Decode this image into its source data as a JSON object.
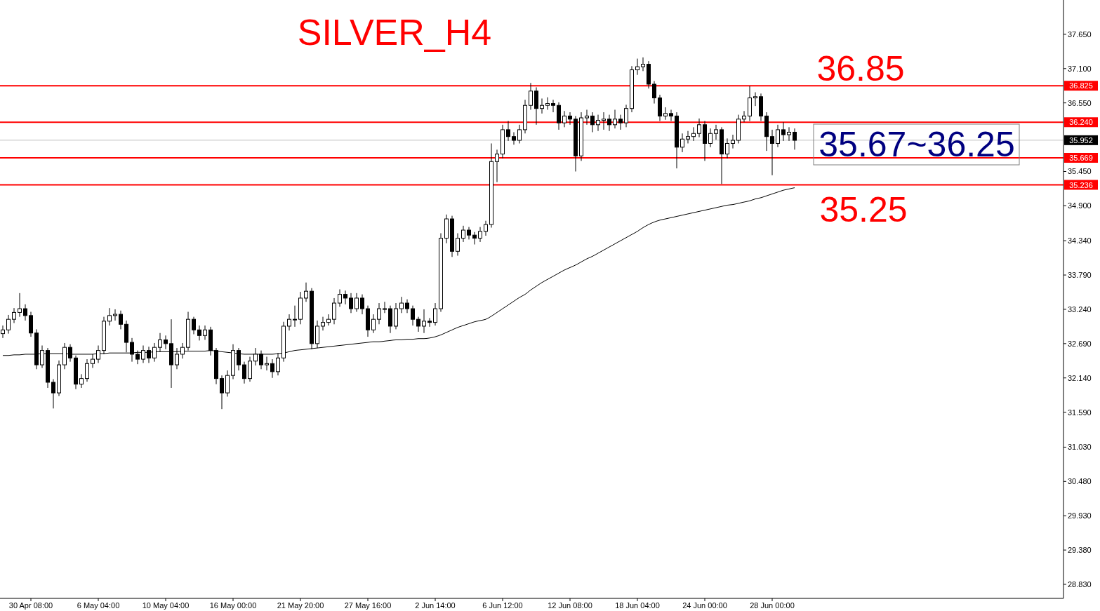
{
  "chart_data": {
    "type": "candlestick",
    "title": "SILVER_H4",
    "categories": [
      null,
      null,
      null,
      null,
      null,
      "30 Apr 08:00",
      null,
      null,
      null,
      null,
      null,
      null,
      null,
      null,
      null,
      null,
      null,
      "6 May 04:00",
      null,
      null,
      null,
      null,
      null,
      null,
      null,
      null,
      null,
      null,
      null,
      "10 May 04:00",
      null,
      null,
      null,
      null,
      null,
      null,
      null,
      null,
      null,
      null,
      null,
      "16 May 00:00",
      null,
      null,
      null,
      null,
      null,
      null,
      null,
      null,
      null,
      null,
      null,
      "21 May 20:00",
      null,
      null,
      null,
      null,
      null,
      null,
      null,
      null,
      null,
      null,
      null,
      "27 May 16:00",
      null,
      null,
      null,
      null,
      null,
      null,
      null,
      null,
      null,
      null,
      null,
      "2 Jun 14:00",
      null,
      null,
      null,
      null,
      null,
      null,
      null,
      null,
      null,
      null,
      null,
      "6 Jun 12:00",
      null,
      null,
      null,
      null,
      null,
      null,
      null,
      null,
      null,
      null,
      null,
      "12 Jun 08:00",
      null,
      null,
      null,
      null,
      null,
      null,
      null,
      null,
      null,
      null,
      null,
      "18 Jun 04:00",
      null,
      null,
      null,
      null,
      null,
      null,
      null,
      null,
      null,
      null,
      null,
      "24 Jun 00:00",
      null,
      null,
      null,
      null,
      null,
      null,
      null,
      null,
      null,
      null,
      null,
      "28 Jun 00:00",
      null,
      null,
      null,
      null
    ],
    "ohlc": [
      [
        32.85,
        32.98,
        32.78,
        32.91
      ],
      [
        32.91,
        33.15,
        32.85,
        33.08
      ],
      [
        33.08,
        33.26,
        33.02,
        33.19
      ],
      [
        33.19,
        33.5,
        33.12,
        33.25
      ],
      [
        33.25,
        33.32,
        33.06,
        33.14
      ],
      [
        33.14,
        33.2,
        32.8,
        32.86
      ],
      [
        32.86,
        32.92,
        32.28,
        32.35
      ],
      [
        32.35,
        32.66,
        32.3,
        32.58
      ],
      [
        32.58,
        32.62,
        31.98,
        32.07
      ],
      [
        32.07,
        32.12,
        31.65,
        31.9
      ],
      [
        31.9,
        32.42,
        31.85,
        32.35
      ],
      [
        32.35,
        32.7,
        32.28,
        32.63
      ],
      [
        32.63,
        32.68,
        32.4,
        32.46
      ],
      [
        32.46,
        32.5,
        31.96,
        32.04
      ],
      [
        32.04,
        32.2,
        31.98,
        32.13
      ],
      [
        32.13,
        32.44,
        32.08,
        32.37
      ],
      [
        32.37,
        32.52,
        32.3,
        32.44
      ],
      [
        32.44,
        32.66,
        32.38,
        32.58
      ],
      [
        32.58,
        33.12,
        32.52,
        33.05
      ],
      [
        33.05,
        33.26,
        32.98,
        33.14
      ],
      [
        33.14,
        33.24,
        33.06,
        33.16
      ],
      [
        33.16,
        33.22,
        32.92,
        33.0
      ],
      [
        33.0,
        33.06,
        32.55,
        32.71
      ],
      [
        32.71,
        32.78,
        32.4,
        32.52
      ],
      [
        32.52,
        32.58,
        32.36,
        32.44
      ],
      [
        32.44,
        32.66,
        32.38,
        32.58
      ],
      [
        32.58,
        32.64,
        32.38,
        32.46
      ],
      [
        32.46,
        32.7,
        32.4,
        32.63
      ],
      [
        32.63,
        32.86,
        32.56,
        32.75
      ],
      [
        32.75,
        32.82,
        32.6,
        32.69
      ],
      [
        32.69,
        33.08,
        31.98,
        32.35
      ],
      [
        32.35,
        32.62,
        32.28,
        32.52
      ],
      [
        32.52,
        32.7,
        32.45,
        32.63
      ],
      [
        32.63,
        33.2,
        32.58,
        33.08
      ],
      [
        33.08,
        33.12,
        32.84,
        32.91
      ],
      [
        32.91,
        32.98,
        32.74,
        32.82
      ],
      [
        32.82,
        32.98,
        32.75,
        32.91
      ],
      [
        32.91,
        32.96,
        32.5,
        32.58
      ],
      [
        32.58,
        32.62,
        32.04,
        32.13
      ],
      [
        32.13,
        32.18,
        31.64,
        31.9
      ],
      [
        31.9,
        32.26,
        31.84,
        32.18
      ],
      [
        32.18,
        32.68,
        32.12,
        32.58
      ],
      [
        32.58,
        32.62,
        32.26,
        32.35
      ],
      [
        32.35,
        32.4,
        32.05,
        32.13
      ],
      [
        32.13,
        32.48,
        32.08,
        32.41
      ],
      [
        32.41,
        32.62,
        32.34,
        32.52
      ],
      [
        32.52,
        32.58,
        32.28,
        32.35
      ],
      [
        32.35,
        32.48,
        32.26,
        32.37
      ],
      [
        32.37,
        32.44,
        32.14,
        32.24
      ],
      [
        32.24,
        32.54,
        32.18,
        32.46
      ],
      [
        32.46,
        33.04,
        32.4,
        32.97
      ],
      [
        32.97,
        33.16,
        32.9,
        33.08
      ],
      [
        33.08,
        33.3,
        32.96,
        33.08
      ],
      [
        33.08,
        33.52,
        33.0,
        33.42
      ],
      [
        33.42,
        33.67,
        33.36,
        33.53
      ],
      [
        33.53,
        33.58,
        32.6,
        32.69
      ],
      [
        32.69,
        33.06,
        32.62,
        32.97
      ],
      [
        32.97,
        33.12,
        32.9,
        33.03
      ],
      [
        33.03,
        33.16,
        32.98,
        33.08
      ],
      [
        33.08,
        33.42,
        33.0,
        33.34
      ],
      [
        33.34,
        33.56,
        33.28,
        33.48
      ],
      [
        33.48,
        33.54,
        33.32,
        33.42
      ],
      [
        33.42,
        33.5,
        33.18,
        33.25
      ],
      [
        33.25,
        33.5,
        33.2,
        33.42
      ],
      [
        33.42,
        33.48,
        33.16,
        33.25
      ],
      [
        33.25,
        33.3,
        32.8,
        32.91
      ],
      [
        32.91,
        33.16,
        32.86,
        33.08
      ],
      [
        33.08,
        33.34,
        33.0,
        33.25
      ],
      [
        33.25,
        33.36,
        33.18,
        33.25
      ],
      [
        33.25,
        33.3,
        32.86,
        32.97
      ],
      [
        32.97,
        33.34,
        32.92,
        33.25
      ],
      [
        33.25,
        33.44,
        33.18,
        33.34
      ],
      [
        33.34,
        33.4,
        33.18,
        33.25
      ],
      [
        33.25,
        33.3,
        32.98,
        33.08
      ],
      [
        33.08,
        33.12,
        32.88,
        32.97
      ],
      [
        32.97,
        33.24,
        32.86,
        33.05
      ],
      [
        33.05,
        33.1,
        32.96,
        33.03
      ],
      [
        33.03,
        33.34,
        32.98,
        33.25
      ],
      [
        33.25,
        34.46,
        33.2,
        34.38
      ],
      [
        34.38,
        34.76,
        34.3,
        34.69
      ],
      [
        34.69,
        34.74,
        34.08,
        34.17
      ],
      [
        34.17,
        34.46,
        34.1,
        34.38
      ],
      [
        34.38,
        34.58,
        34.32,
        34.51
      ],
      [
        34.51,
        34.56,
        34.36,
        34.43
      ],
      [
        34.43,
        34.48,
        34.28,
        34.38
      ],
      [
        34.38,
        34.56,
        34.32,
        34.49
      ],
      [
        34.49,
        34.66,
        34.42,
        34.6
      ],
      [
        34.6,
        35.9,
        34.55,
        35.61
      ],
      [
        35.61,
        35.8,
        35.28,
        35.73
      ],
      [
        35.73,
        36.2,
        35.66,
        36.12
      ],
      [
        36.12,
        36.26,
        35.94,
        36.01
      ],
      [
        36.01,
        36.08,
        35.88,
        35.95
      ],
      [
        35.95,
        36.2,
        35.9,
        36.12
      ],
      [
        36.12,
        36.6,
        36.06,
        36.51
      ],
      [
        36.51,
        36.87,
        36.44,
        36.74
      ],
      [
        36.74,
        36.8,
        36.2,
        36.46
      ],
      [
        36.46,
        36.62,
        36.38,
        36.51
      ],
      [
        36.51,
        36.64,
        36.44,
        36.54
      ],
      [
        36.54,
        36.6,
        36.4,
        36.51
      ],
      [
        36.51,
        36.56,
        36.12,
        36.23
      ],
      [
        36.23,
        36.42,
        36.16,
        36.34
      ],
      [
        36.34,
        36.4,
        36.2,
        36.29
      ],
      [
        36.29,
        36.34,
        35.45,
        35.7
      ],
      [
        35.7,
        36.4,
        35.62,
        36.31
      ],
      [
        36.31,
        36.44,
        36.2,
        36.34
      ],
      [
        36.34,
        36.4,
        36.08,
        36.2
      ],
      [
        36.2,
        36.36,
        36.1,
        36.27
      ],
      [
        36.27,
        36.4,
        36.12,
        36.29
      ],
      [
        36.29,
        36.36,
        36.1,
        36.2
      ],
      [
        36.2,
        36.44,
        36.14,
        36.29
      ],
      [
        36.29,
        36.36,
        36.12,
        36.23
      ],
      [
        36.23,
        36.52,
        36.16,
        36.46
      ],
      [
        36.46,
        37.14,
        36.4,
        37.08
      ],
      [
        37.08,
        37.26,
        37.0,
        37.13
      ],
      [
        37.13,
        37.28,
        37.06,
        37.17
      ],
      [
        37.17,
        37.22,
        36.78,
        36.85
      ],
      [
        36.85,
        36.9,
        36.54,
        36.63
      ],
      [
        36.63,
        36.68,
        36.26,
        36.34
      ],
      [
        36.34,
        36.48,
        36.28,
        36.38
      ],
      [
        36.38,
        36.44,
        36.26,
        36.34
      ],
      [
        36.34,
        36.4,
        35.5,
        35.84
      ],
      [
        35.84,
        36.06,
        35.76,
        35.97
      ],
      [
        35.97,
        36.1,
        35.9,
        36.01
      ],
      [
        36.01,
        36.16,
        35.94,
        36.06
      ],
      [
        36.06,
        36.3,
        36.0,
        36.2
      ],
      [
        36.2,
        36.26,
        35.62,
        35.9
      ],
      [
        35.9,
        36.14,
        35.84,
        36.06
      ],
      [
        36.06,
        36.2,
        35.96,
        36.12
      ],
      [
        36.12,
        36.16,
        35.25,
        35.73
      ],
      [
        35.73,
        35.98,
        35.66,
        35.9
      ],
      [
        35.9,
        36.04,
        35.82,
        35.95
      ],
      [
        35.95,
        36.36,
        35.9,
        36.29
      ],
      [
        36.29,
        36.42,
        36.24,
        36.34
      ],
      [
        36.34,
        36.82,
        36.26,
        36.63
      ],
      [
        36.63,
        36.72,
        36.5,
        36.65
      ],
      [
        36.65,
        36.7,
        36.26,
        36.34
      ],
      [
        36.34,
        36.4,
        35.78,
        36.01
      ],
      [
        36.01,
        36.12,
        35.39,
        35.9
      ],
      [
        35.9,
        36.2,
        35.84,
        36.12
      ],
      [
        36.12,
        36.24,
        35.94,
        36.04
      ],
      [
        36.04,
        36.16,
        35.94,
        36.08
      ],
      [
        36.08,
        36.14,
        35.8,
        35.95
      ]
    ],
    "series": [
      {
        "type": "line",
        "color": "#000000",
        "values": [
          32.5,
          32.5,
          32.51,
          32.51,
          32.52,
          32.52,
          32.52,
          32.53,
          32.53,
          32.53,
          32.53,
          32.53,
          32.52,
          32.52,
          32.52,
          32.52,
          32.52,
          32.53,
          32.53,
          32.54,
          32.54,
          32.54,
          32.54,
          32.54,
          32.55,
          32.55,
          32.55,
          32.56,
          32.56,
          32.56,
          32.56,
          32.56,
          32.57,
          32.57,
          32.57,
          32.57,
          32.57,
          32.58,
          32.57,
          32.56,
          32.55,
          32.54,
          32.53,
          32.52,
          32.52,
          32.52,
          32.52,
          32.52,
          32.52,
          32.53,
          32.54,
          32.56,
          32.58,
          32.59,
          32.6,
          32.61,
          32.62,
          32.63,
          32.64,
          32.65,
          32.66,
          32.67,
          32.68,
          32.69,
          32.7,
          32.71,
          32.72,
          32.72,
          32.73,
          32.74,
          32.75,
          32.75,
          32.76,
          32.76,
          32.77,
          32.77,
          32.78,
          32.8,
          32.83,
          32.87,
          32.91,
          32.95,
          32.98,
          33.01,
          33.04,
          33.06,
          33.08,
          33.13,
          33.19,
          33.25,
          33.31,
          33.37,
          33.43,
          33.48,
          33.55,
          33.61,
          33.67,
          33.72,
          33.77,
          33.82,
          33.87,
          33.91,
          33.95,
          34.0,
          34.05,
          34.09,
          34.14,
          34.19,
          34.24,
          34.29,
          34.34,
          34.39,
          34.44,
          34.49,
          34.55,
          34.6,
          34.64,
          34.67,
          34.69,
          34.71,
          34.73,
          34.75,
          34.77,
          34.79,
          34.81,
          34.83,
          34.85,
          34.87,
          34.89,
          34.91,
          34.92,
          34.94,
          34.96,
          34.98,
          35.01,
          35.03,
          35.06,
          35.09,
          35.12,
          35.15,
          35.17,
          35.19
        ]
      }
    ],
    "ylim": [
      28.605,
      38.2
    ],
    "yticks": [
      {
        "value": 28.83,
        "label": "28.830"
      },
      {
        "value": 29.38,
        "label": "29.380"
      },
      {
        "value": 29.93,
        "label": "29.930"
      },
      {
        "value": 30.48,
        "label": "30.480"
      },
      {
        "value": 31.03,
        "label": "31.030"
      },
      {
        "value": 31.59,
        "label": "31.590"
      },
      {
        "value": 32.14,
        "label": "32.140"
      },
      {
        "value": 32.69,
        "label": "32.690"
      },
      {
        "value": 33.24,
        "label": "33.240"
      },
      {
        "value": 33.79,
        "label": "33.790"
      },
      {
        "value": 34.34,
        "label": "34.340"
      },
      {
        "value": 34.9,
        "label": "34.900"
      },
      {
        "value": 35.45,
        "label": "35.450"
      },
      {
        "value": 36.55,
        "label": "36.550"
      },
      {
        "value": 37.1,
        "label": "37.100"
      },
      {
        "value": 37.65,
        "label": "37.650"
      }
    ],
    "ref_lines": [
      {
        "axis": "y",
        "value": 36.825,
        "label": "36.825",
        "color": "#ff0000"
      },
      {
        "axis": "y",
        "value": 36.24,
        "label": "36.240",
        "color": "#ff0000"
      },
      {
        "axis": "y",
        "value": 35.952,
        "label": "35.952",
        "color": "#c0c0c0"
      },
      {
        "axis": "y",
        "value": 35.669,
        "label": "35.669",
        "color": "#ff0000"
      },
      {
        "axis": "y",
        "value": 35.236,
        "label": "35.236",
        "color": "#ff0000"
      }
    ],
    "annotations": [
      "36.85",
      "35.67~36.25",
      "35.25"
    ],
    "grid": false
  }
}
